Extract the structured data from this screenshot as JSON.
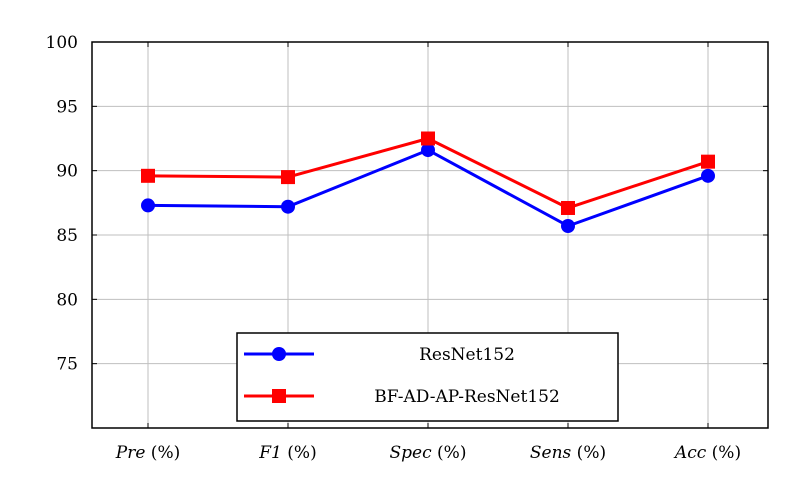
{
  "chart_data": {
    "type": "line",
    "categories": [
      "Pre (%)",
      "F1 (%)",
      "Spec (%)",
      "Sens (%)",
      "Acc (%)"
    ],
    "category_names": [
      "Pre",
      "F1",
      "Spec",
      "Sens",
      "Acc"
    ],
    "category_units": [
      "(%)",
      "(%)",
      "(%)",
      "(%)",
      "(%)"
    ],
    "series": [
      {
        "name": "ResNet152",
        "values": [
          87.3,
          87.2,
          91.6,
          85.7,
          89.6
        ],
        "color": "#0000ff",
        "marker": "circle"
      },
      {
        "name": "BF-AD-AP-ResNet152",
        "values": [
          89.6,
          89.5,
          92.5,
          87.1,
          90.7
        ],
        "color": "#ff0000",
        "marker": "square"
      }
    ],
    "yticks": [
      75,
      80,
      85,
      90,
      95,
      100
    ],
    "ylim": [
      70,
      100
    ],
    "grid": true,
    "legend_position": "bottom-center",
    "title": "",
    "xlabel": "",
    "ylabel": ""
  }
}
